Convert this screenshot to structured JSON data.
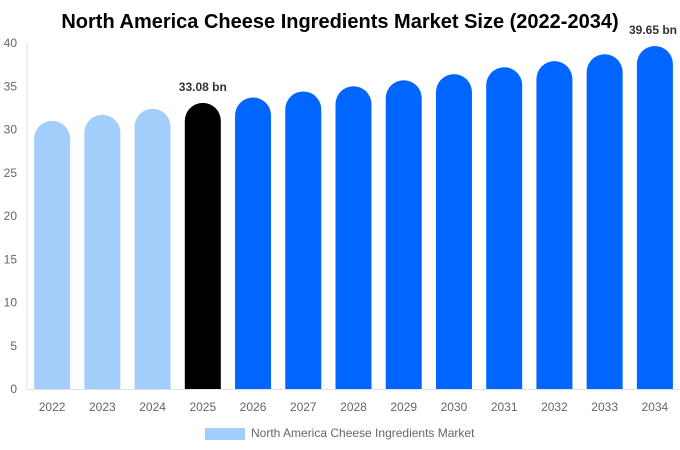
{
  "chart_data": {
    "type": "bar",
    "title": "North America Cheese Ingredients Market Size (2022-2034)",
    "categories": [
      "2022",
      "2023",
      "2024",
      "2025",
      "2026",
      "2027",
      "2028",
      "2029",
      "2030",
      "2031",
      "2032",
      "2033",
      "2034"
    ],
    "series": [
      {
        "name": "North America Cheese Ingredients Market",
        "values": [
          31.0,
          31.7,
          32.4,
          33.08,
          33.7,
          34.4,
          35.0,
          35.7,
          36.4,
          37.2,
          37.9,
          38.7,
          39.65
        ]
      }
    ],
    "bar_colors": [
      "#a3cefc",
      "#a3cefc",
      "#a3cefc",
      "#000000",
      "#0066ff",
      "#0066ff",
      "#0066ff",
      "#0066ff",
      "#0066ff",
      "#0066ff",
      "#0066ff",
      "#0066ff",
      "#0066ff"
    ],
    "data_labels": [
      {
        "index": 3,
        "text": "33.08 bn"
      },
      {
        "index": 12,
        "text": "39.65 bn"
      }
    ],
    "ylim": [
      0,
      40
    ],
    "yticks": [
      "0",
      "5",
      "10",
      "15",
      "20",
      "25",
      "30",
      "35",
      "40"
    ],
    "grid": false,
    "legend": "bottom",
    "legend_color": "#a3cefc"
  }
}
